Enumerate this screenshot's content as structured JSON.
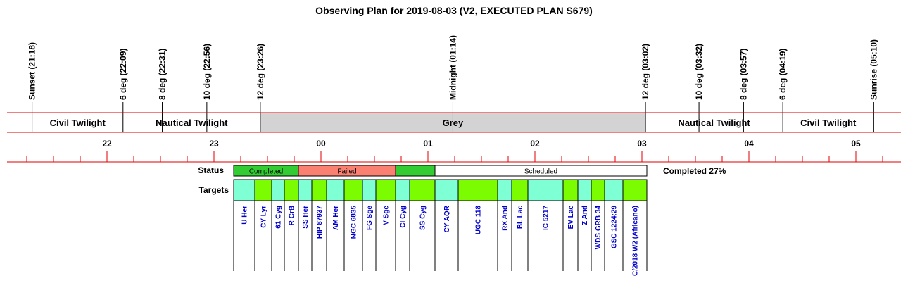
{
  "title": "Observing Plan for 2019-08-03 (V2, EXECUTED PLAN S679)",
  "events": [
    "Sunset (21:18)",
    "6 deg (22:09)",
    "8 deg (22:31)",
    "10 deg (22:56)",
    "12 deg (23:26)",
    "Midnight (01:14)",
    "12 deg (03:02)",
    "10 deg (03:32)",
    "8 deg (03:57)",
    "6 deg (04:19)",
    "Sunrise (05:10)"
  ],
  "bands": [
    {
      "label": "Civil Twilight"
    },
    {
      "label": "Nautical Twilight"
    },
    {
      "label": "Grey",
      "color": "#d3d3d3"
    },
    {
      "label": "Nautical Twilight"
    },
    {
      "label": "Civil Twilight"
    }
  ],
  "hours": [
    "22",
    "23",
    "00",
    "01",
    "02",
    "03",
    "04",
    "05"
  ],
  "status": {
    "label": "Status",
    "summary": "Completed 27%",
    "segments": [
      {
        "label": "Completed",
        "color": "#33cc33"
      },
      {
        "label": "Failed",
        "color": "#fa8072"
      },
      {
        "color": "#33cc33"
      },
      {
        "label": "Scheduled",
        "color": "#ffffff"
      }
    ]
  },
  "targets": {
    "label": "Targets",
    "items": [
      {
        "name": "U Her",
        "color": "#7fffd4"
      },
      {
        "name": "CY Lyr",
        "color": "#7cfc00"
      },
      {
        "name": "61 Cyg",
        "color": "#7fffd4"
      },
      {
        "name": "R CrB",
        "color": "#7cfc00"
      },
      {
        "name": "SS Her",
        "color": "#7fffd4"
      },
      {
        "name": "HIP 87937",
        "color": "#7cfc00"
      },
      {
        "name": "AM Her",
        "color": "#7fffd4"
      },
      {
        "name": "NGC 6835",
        "color": "#7cfc00"
      },
      {
        "name": "FG Sge",
        "color": "#7fffd4"
      },
      {
        "name": "V Sge",
        "color": "#7cfc00"
      },
      {
        "name": "CI Cyg",
        "color": "#7fffd4"
      },
      {
        "name": "SS Cyg",
        "color": "#7cfc00"
      },
      {
        "name": "CY AQR",
        "color": "#7fffd4"
      },
      {
        "name": "UGC 118",
        "color": "#7cfc00"
      },
      {
        "name": "RX And",
        "color": "#7fffd4"
      },
      {
        "name": "BL Lac",
        "color": "#7cfc00"
      },
      {
        "name": "IC 5217",
        "color": "#7fffd4"
      },
      {
        "name": "EV Lac",
        "color": "#7cfc00"
      },
      {
        "name": "Z And",
        "color": "#7fffd4"
      },
      {
        "name": "WDS GRB 34",
        "color": "#7cfc00"
      },
      {
        "name": "GSC 1224:29",
        "color": "#7fffd4"
      },
      {
        "name": "C/2018 W2 (Africano)",
        "color": "#7cfc00"
      }
    ]
  }
}
